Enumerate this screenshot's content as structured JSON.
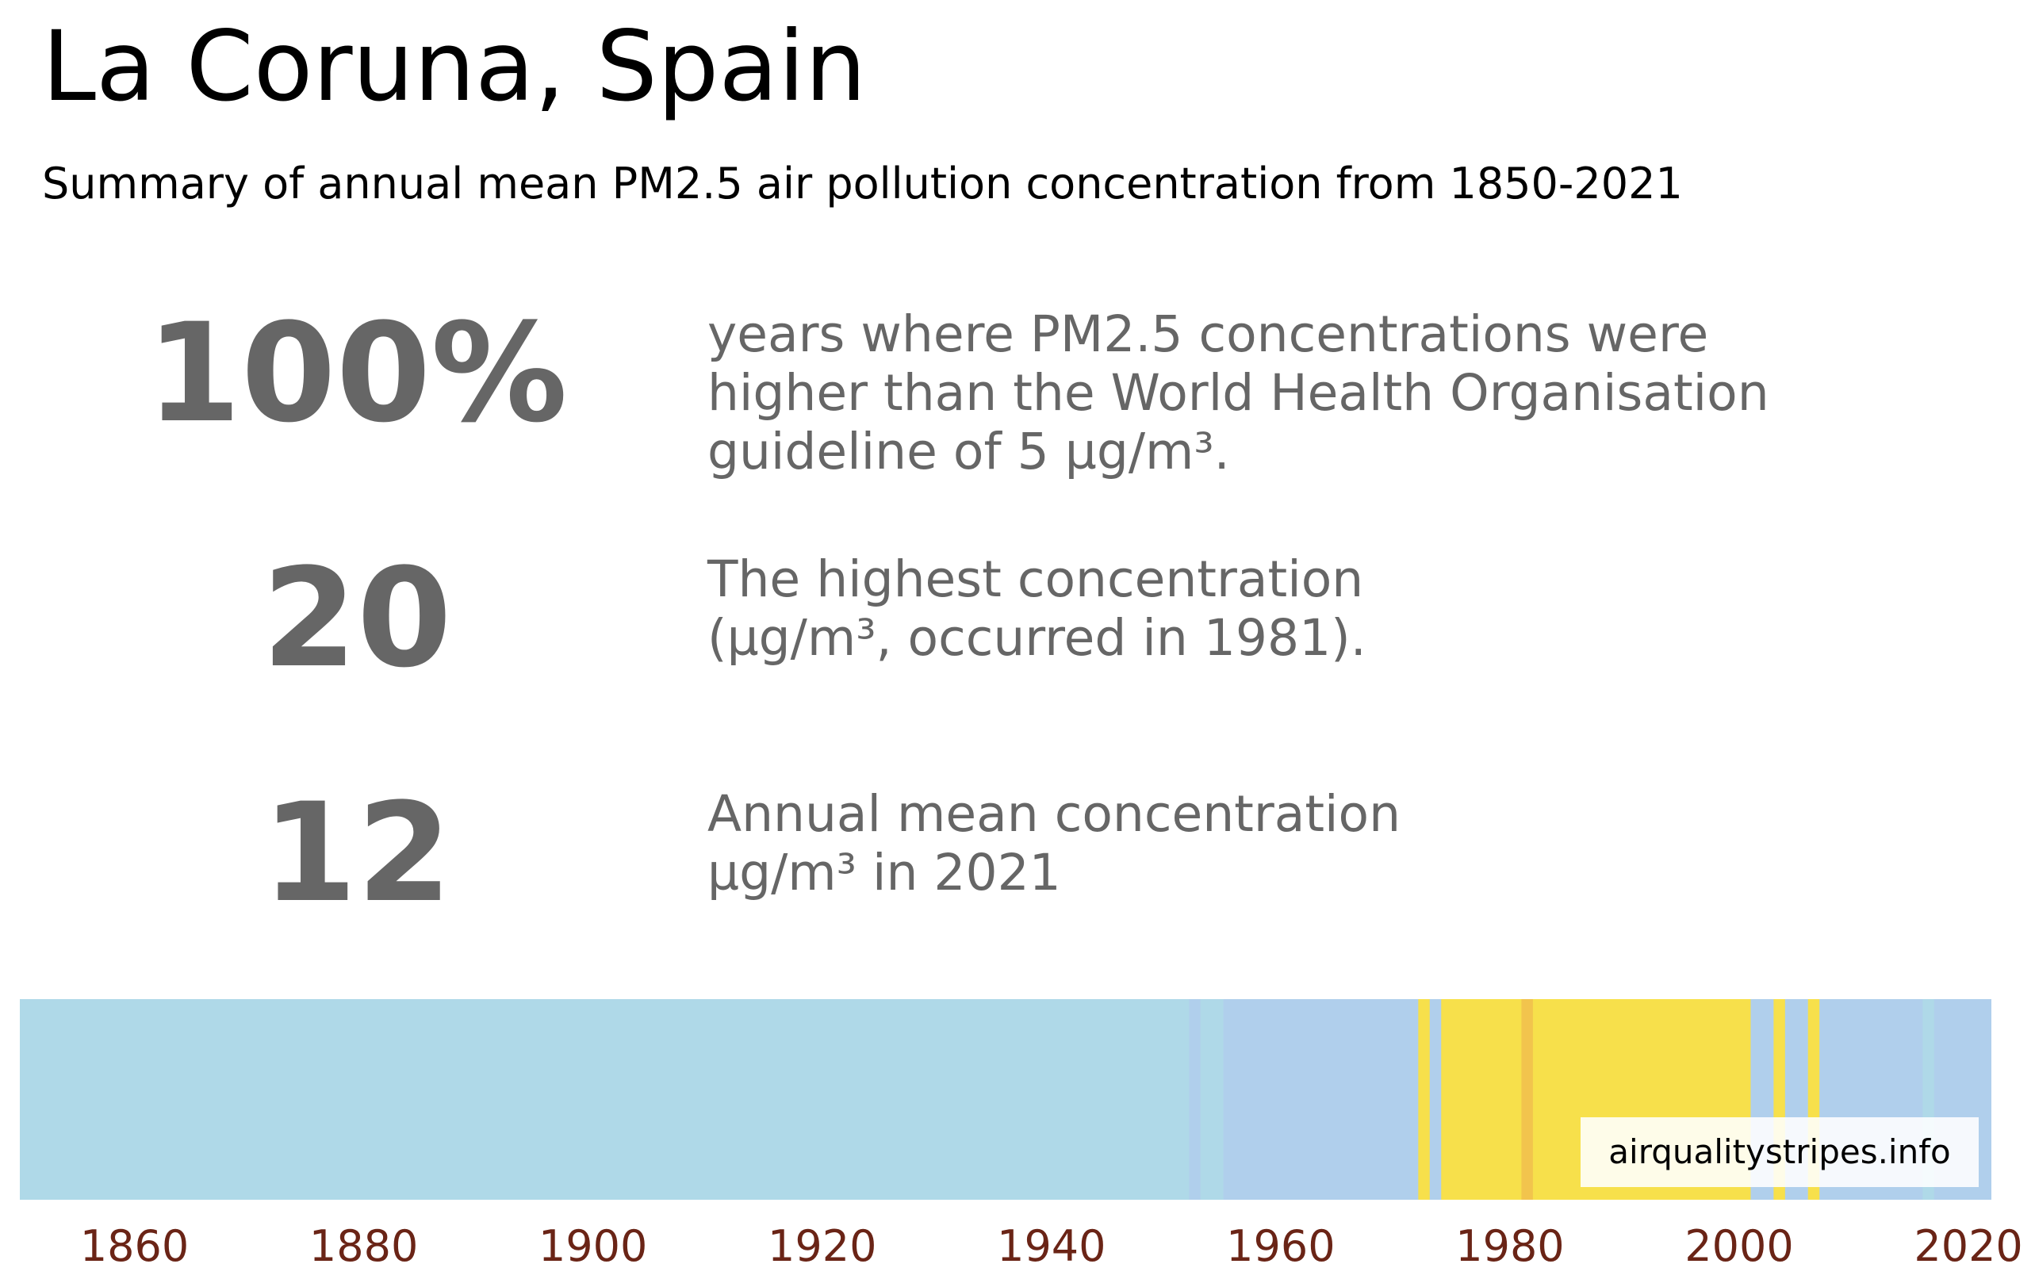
{
  "title": "La Coruna, Spain",
  "subtitle": "Summary of annual mean PM2.5 air pollution concentration from 1850-2021",
  "stats": [
    {
      "value": "100%",
      "text": "years where PM2.5 concentrations were\nhigher than the World Health Organisation\nguideline of 5 µg/m³."
    },
    {
      "value": "20",
      "text": "The highest concentration\n(µg/m³, occurred in 1981)."
    },
    {
      "value": "12",
      "text": "Annual mean concentration\nµg/m³ in 2021"
    }
  ],
  "attribution": "airqualitystripes.info",
  "colors": {
    "stat_text": "#666666",
    "axis_text": "#6a2416",
    "light_blue": "#afd9e8",
    "blue": "#b0cfec",
    "yellow": "#f7e04b",
    "orange": "#f2c44d"
  },
  "chart_data": {
    "type": "heatmap",
    "description_free": true,
    "xlim": [
      1850,
      2022
    ],
    "x_ticks": [
      1860,
      1880,
      1900,
      1920,
      1940,
      1960,
      1980,
      2000,
      2020
    ],
    "color_scale_note_free": true,
    "segments": [
      {
        "start": 1850,
        "end": 1952,
        "color_key": "light_blue"
      },
      {
        "start": 1952,
        "end": 1953,
        "color_key": "blue"
      },
      {
        "start": 1953,
        "end": 1955,
        "color_key": "light_blue"
      },
      {
        "start": 1955,
        "end": 1972,
        "color_key": "blue"
      },
      {
        "start": 1972,
        "end": 1973,
        "color_key": "yellow"
      },
      {
        "start": 1973,
        "end": 1974,
        "color_key": "blue"
      },
      {
        "start": 1974,
        "end": 1981,
        "color_key": "yellow"
      },
      {
        "start": 1981,
        "end": 1982,
        "color_key": "orange"
      },
      {
        "start": 1982,
        "end": 2001,
        "color_key": "yellow"
      },
      {
        "start": 2001,
        "end": 2003,
        "color_key": "blue"
      },
      {
        "start": 2003,
        "end": 2004,
        "color_key": "yellow"
      },
      {
        "start": 2004,
        "end": 2006,
        "color_key": "blue"
      },
      {
        "start": 2006,
        "end": 2007,
        "color_key": "yellow"
      },
      {
        "start": 2007,
        "end": 2016,
        "color_key": "blue"
      },
      {
        "start": 2016,
        "end": 2017,
        "color_key": "light_blue"
      },
      {
        "start": 2017,
        "end": 2022,
        "color_key": "blue"
      }
    ]
  }
}
